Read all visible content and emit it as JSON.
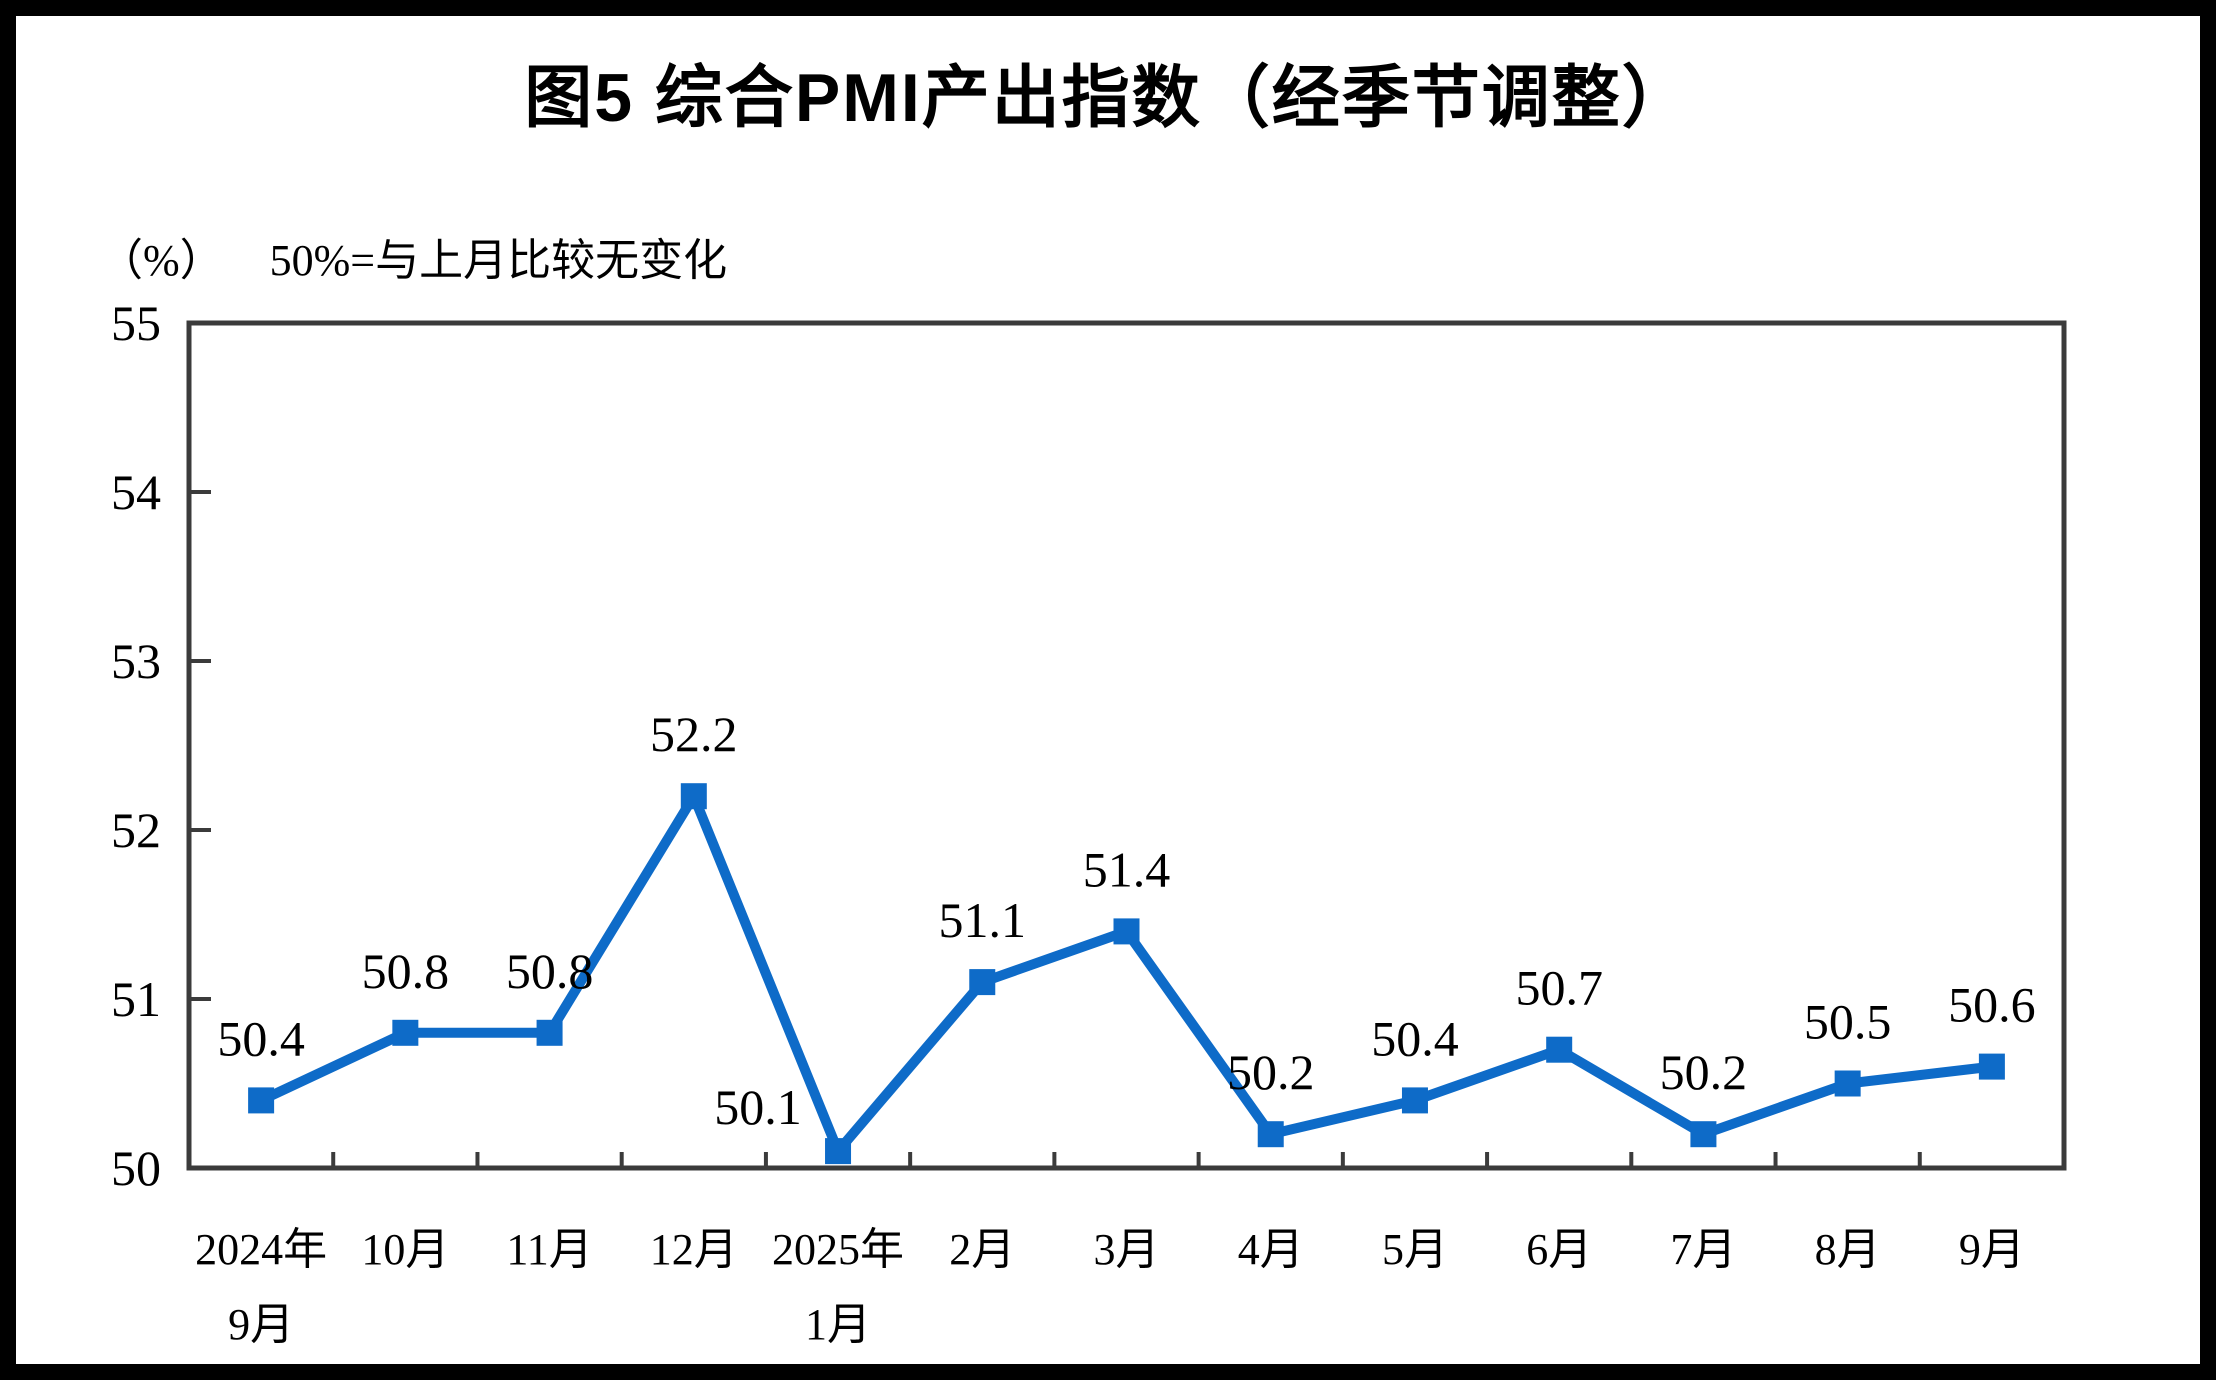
{
  "figure": {
    "title": "图5 综合PMI产出指数（经季节调整）",
    "unit_label": "（%）",
    "note": "50%=与上月比较无变化"
  },
  "chart_data": {
    "type": "line",
    "title": "图5 综合PMI产出指数（经季节调整）",
    "ylabel": "",
    "xlabel": "",
    "unit": "%",
    "note": "50%=与上月比较无变化",
    "categories": [
      [
        "2024年",
        "9月"
      ],
      [
        "10月"
      ],
      [
        "11月"
      ],
      [
        "12月"
      ],
      [
        "2025年",
        "1月"
      ],
      [
        "2月"
      ],
      [
        "3月"
      ],
      [
        "4月"
      ],
      [
        "5月"
      ],
      [
        "6月"
      ],
      [
        "7月"
      ],
      [
        "8月"
      ],
      [
        "9月"
      ]
    ],
    "values": [
      50.4,
      50.8,
      50.8,
      52.2,
      50.1,
      51.1,
      51.4,
      50.2,
      50.4,
      50.7,
      50.2,
      50.5,
      50.6
    ],
    "data_labels": [
      "50.4",
      "50.8",
      "50.8",
      "52.2",
      "50.1",
      "51.1",
      "51.4",
      "50.2",
      "50.4",
      "50.7",
      "50.2",
      "50.5",
      "50.6"
    ],
    "ylim": [
      50,
      55
    ],
    "yticks": [
      50,
      51,
      52,
      53,
      54,
      55
    ],
    "grid": false,
    "legend": "none",
    "marker": "square",
    "line_color": "#0E6BC8",
    "axis_color": "#3B3B3B",
    "text_color": "#000000"
  }
}
